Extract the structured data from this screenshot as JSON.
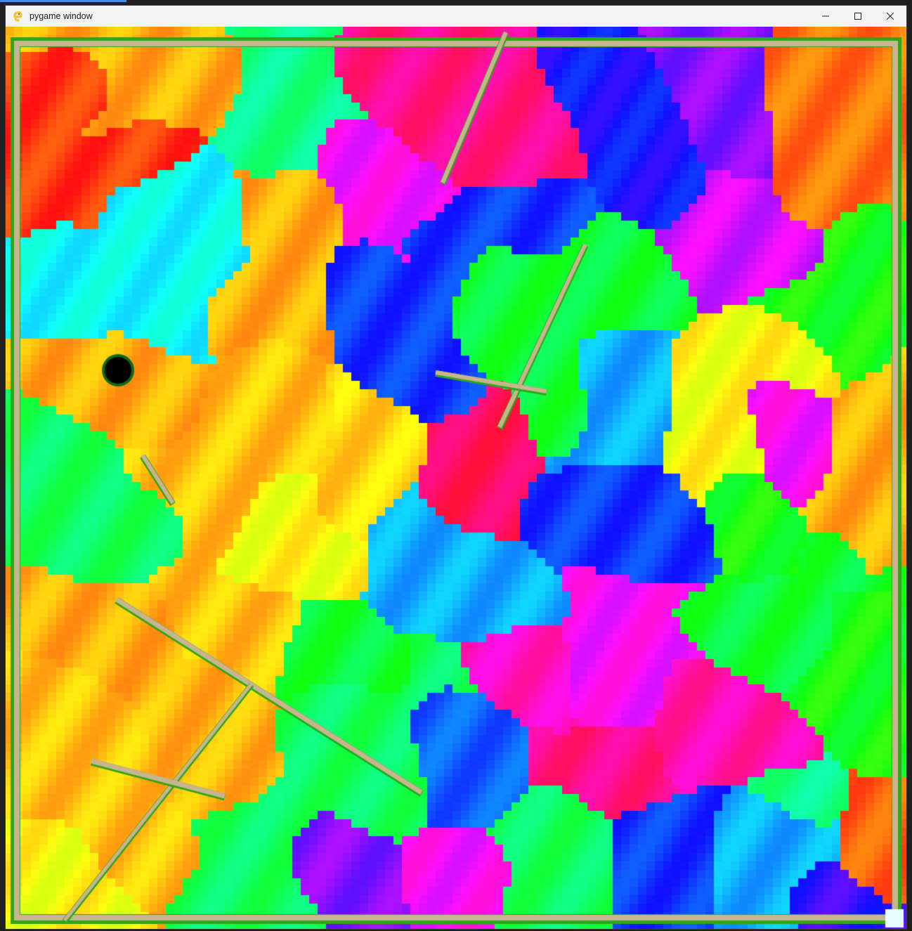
{
  "window": {
    "title": "pygame window",
    "icon": "python-snake-icon",
    "controls": [
      "minimize-icon",
      "maximize-icon",
      "close-icon"
    ]
  },
  "colors": {
    "titlebar": "#f3f3f3",
    "wall": "#c8b48f",
    "wall_edge": "#2ea61a",
    "agent": "#000000",
    "agent_edge": "#0a6b14",
    "goal": "#e8ffff"
  }
}
